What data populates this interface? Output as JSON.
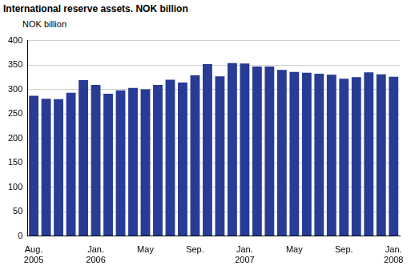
{
  "chart_data": {
    "type": "bar",
    "title": "International reserve assets. NOK billion",
    "y_label": "NOK billion",
    "categories": [
      "Aug. 2005",
      null,
      null,
      null,
      null,
      "Jan. 2006",
      null,
      null,
      null,
      "May",
      null,
      null,
      null,
      "Sep.",
      null,
      null,
      null,
      "Jan. 2007",
      null,
      null,
      null,
      "May",
      null,
      null,
      null,
      "Sep.",
      null,
      null,
      null,
      "Jan. 2008"
    ],
    "values": [
      287,
      281,
      280,
      293,
      319,
      309,
      291,
      298,
      303,
      300,
      309,
      320,
      314,
      329,
      352,
      327,
      354,
      353,
      347,
      347,
      340,
      336,
      334,
      332,
      330,
      322,
      325,
      335,
      331,
      326
    ],
    "color": "#283c96",
    "ylim": [
      0,
      400
    ],
    "yticks": [
      0,
      50,
      100,
      150,
      200,
      250,
      300,
      350,
      400
    ],
    "grid": true
  }
}
